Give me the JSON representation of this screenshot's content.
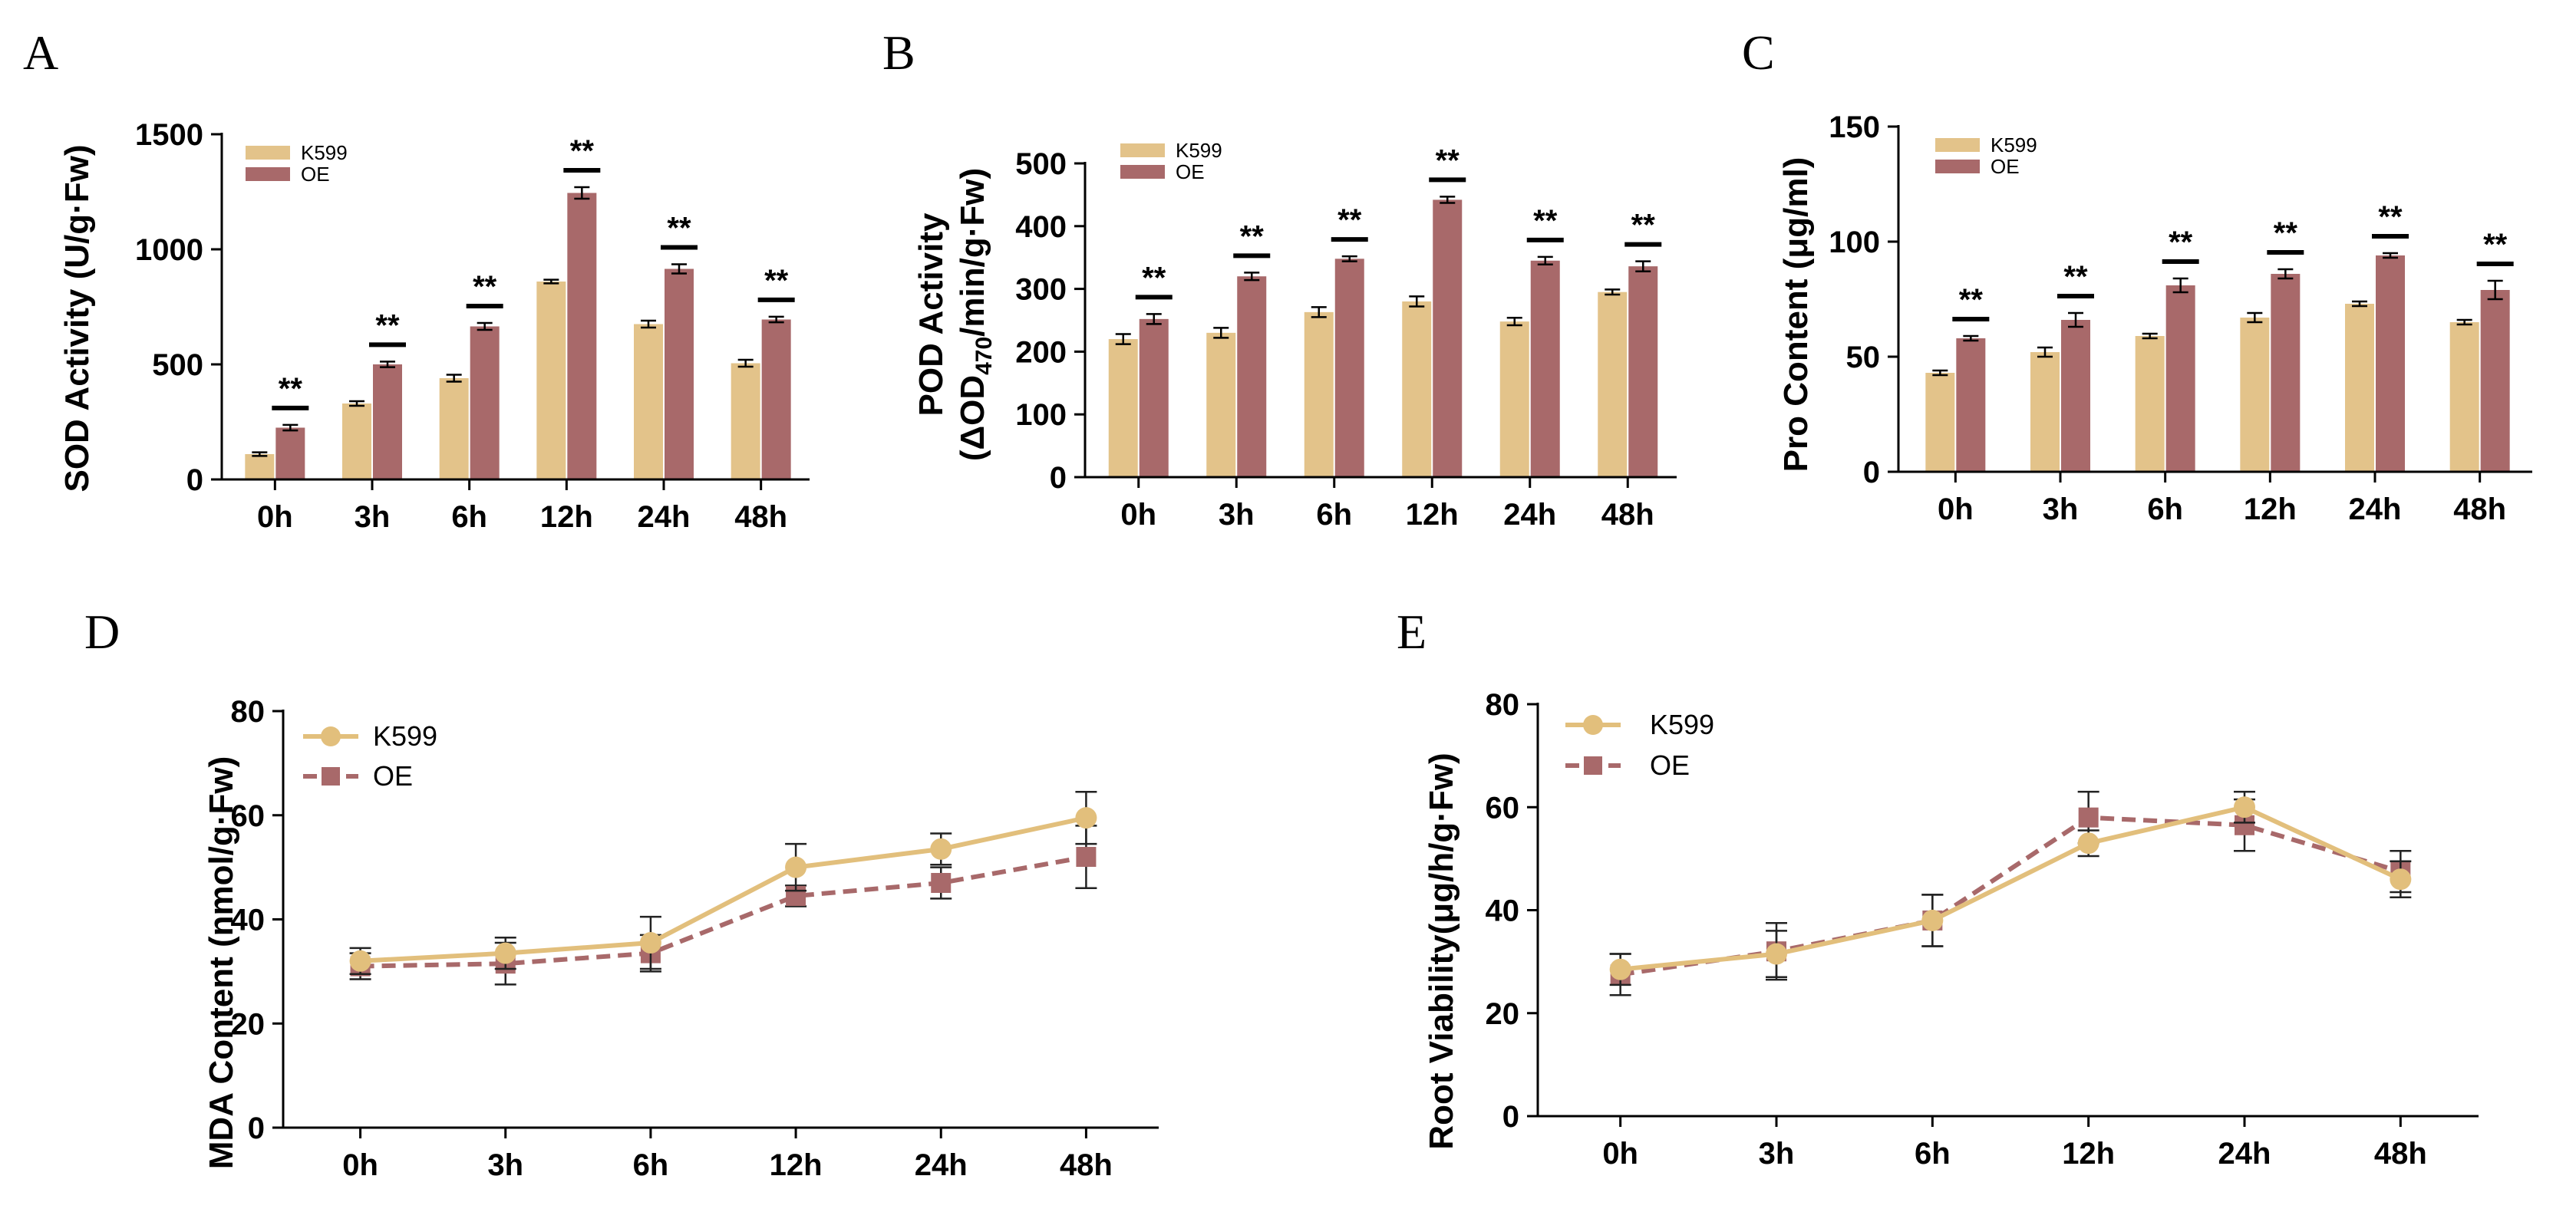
{
  "colors": {
    "k599": "#e3c38a",
    "oe": "#a8696a",
    "k599_line": "#e2bf7c",
    "oe_line": "#a8696a"
  },
  "chart_data": [
    {
      "panel": "A",
      "type": "bar",
      "ylabel": "SOD Activity (U/g·Fw)",
      "ylim": [
        0,
        1500
      ],
      "yticks": [
        "0",
        "500",
        "1000",
        "1500"
      ],
      "ytick_values": [
        0,
        500,
        1000,
        1500
      ],
      "categories": [
        "0h",
        "3h",
        "6h",
        "12h",
        "24h",
        "48h"
      ],
      "series": [
        {
          "name": "K599",
          "values": [
            110,
            330,
            440,
            860,
            675,
            505
          ],
          "errors": [
            8,
            10,
            15,
            8,
            15,
            15
          ]
        },
        {
          "name": "OE",
          "values": [
            225,
            500,
            665,
            1245,
            915,
            695
          ],
          "errors": [
            12,
            12,
            15,
            25,
            20,
            12
          ]
        }
      ],
      "significance": [
        "**",
        "**",
        "**",
        "**",
        "**",
        "**"
      ]
    },
    {
      "panel": "B",
      "type": "bar",
      "ylabel_line1": "POD Activity",
      "ylabel_line2": {
        "pre": "(ΔOD",
        "sub": "470",
        "post": "/min/g·Fw)"
      },
      "ylim": [
        0,
        500
      ],
      "yticks": [
        "0",
        "100",
        "200",
        "300",
        "400",
        "500"
      ],
      "ytick_values": [
        0,
        100,
        200,
        300,
        400,
        500
      ],
      "categories": [
        "0h",
        "3h",
        "6h",
        "12h",
        "24h",
        "48h"
      ],
      "series": [
        {
          "name": "K599",
          "values": [
            220,
            230,
            263,
            280,
            248,
            295
          ],
          "errors": [
            8,
            8,
            8,
            8,
            6,
            4
          ]
        },
        {
          "name": "OE",
          "values": [
            252,
            320,
            348,
            442,
            345,
            336
          ],
          "errors": [
            8,
            6,
            4,
            5,
            6,
            8
          ]
        }
      ],
      "significance": [
        "**",
        "**",
        "**",
        "**",
        "**",
        "**"
      ]
    },
    {
      "panel": "C",
      "type": "bar",
      "ylabel": "Pro Content (μg/ml)",
      "ylim": [
        0,
        150
      ],
      "yticks": [
        "0",
        "50",
        "100",
        "150"
      ],
      "ytick_values": [
        0,
        50,
        100,
        150
      ],
      "categories": [
        "0h",
        "3h",
        "6h",
        "12h",
        "24h",
        "48h"
      ],
      "series": [
        {
          "name": "K599",
          "values": [
            43,
            52,
            59,
            67,
            73,
            65
          ],
          "errors": [
            1,
            2,
            1,
            2,
            1,
            1
          ]
        },
        {
          "name": "OE",
          "values": [
            58,
            66,
            81,
            86,
            94,
            79
          ],
          "errors": [
            1,
            3,
            3,
            2,
            1,
            4
          ]
        }
      ],
      "significance": [
        "**",
        "**",
        "**",
        "**",
        "**",
        "**"
      ]
    },
    {
      "panel": "D",
      "type": "line",
      "ylabel": "MDA Content (nmol/g·Fw)",
      "ylim": [
        0,
        80
      ],
      "yticks": [
        "0",
        "20",
        "40",
        "60",
        "80"
      ],
      "ytick_values": [
        0,
        20,
        40,
        60,
        80
      ],
      "x": [
        "0h",
        "3h",
        "6h",
        "12h",
        "24h",
        "48h"
      ],
      "series": [
        {
          "name": "K599",
          "values": [
            32,
            33.5,
            35.5,
            50,
            53.5,
            59.5
          ],
          "errors": [
            2.5,
            3,
            5,
            4.5,
            3,
            5
          ]
        },
        {
          "name": "OE",
          "values": [
            31,
            31.5,
            33.5,
            44.5,
            47,
            52
          ],
          "errors": [
            2.5,
            4,
            3.5,
            2,
            3,
            6
          ]
        }
      ]
    },
    {
      "panel": "E",
      "type": "line",
      "ylabel": "Root Viability(μg/h/g·Fw)",
      "ylim": [
        0,
        80
      ],
      "yticks": [
        "0",
        "20",
        "40",
        "60",
        "80"
      ],
      "ytick_values": [
        0,
        20,
        40,
        60,
        80
      ],
      "x": [
        "0h",
        "3h",
        "6h",
        "12h",
        "24h",
        "48h"
      ],
      "series": [
        {
          "name": "K599",
          "values": [
            28.5,
            31.5,
            38,
            53,
            60,
            46
          ],
          "errors": [
            3,
            4.5,
            5,
            2.5,
            3,
            3.5
          ]
        },
        {
          "name": "OE",
          "values": [
            27.5,
            32,
            38,
            58,
            56.5,
            47.5
          ],
          "errors": [
            4,
            5.5,
            5,
            5,
            5,
            4
          ]
        }
      ]
    }
  ]
}
